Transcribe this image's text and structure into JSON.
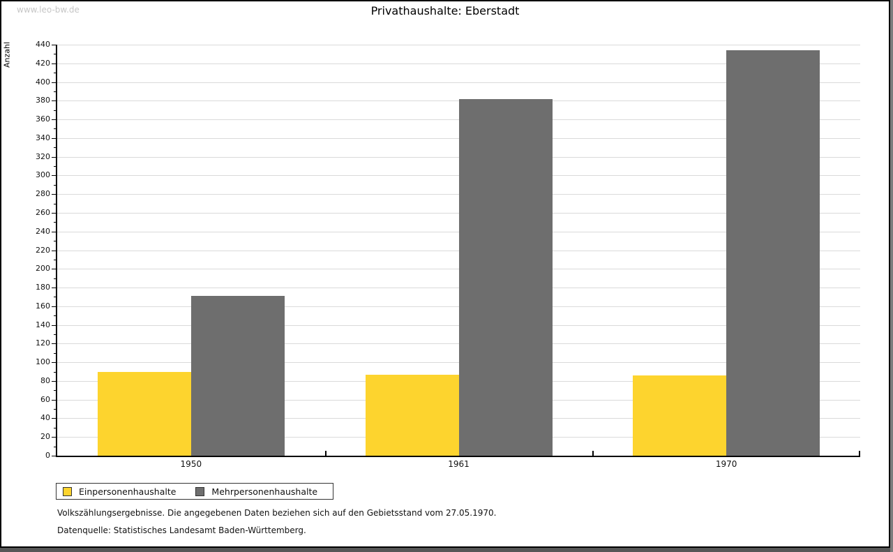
{
  "watermark": "www.leo-bw.de",
  "title": "Privathaushalte: Eberstadt",
  "chart_data": {
    "type": "bar",
    "title": "Privathaushalte: Eberstadt",
    "xlabel": "",
    "ylabel": "Anzahl",
    "categories": [
      "1950",
      "1961",
      "1970"
    ],
    "series": [
      {
        "name": "Einpersonenhaushalte",
        "color": "#FDD42E",
        "values": [
          90,
          87,
          86
        ]
      },
      {
        "name": "Mehrpersonenhaushalte",
        "color": "#6E6E6E",
        "values": [
          171,
          382,
          434
        ]
      }
    ],
    "ylim": [
      0,
      440
    ],
    "ytick_step": 20,
    "yminor_step": 10,
    "grid": "horizontal",
    "gridline_color": "#dadada",
    "legend_position": "bottom-left"
  },
  "footnotes": [
    "Volkszählungsergebnisse. Die angegebenen Daten beziehen sich auf den Gebietsstand vom 27.05.1970.",
    "Datenquelle: Statistisches Landesamt Baden-Württemberg."
  ]
}
